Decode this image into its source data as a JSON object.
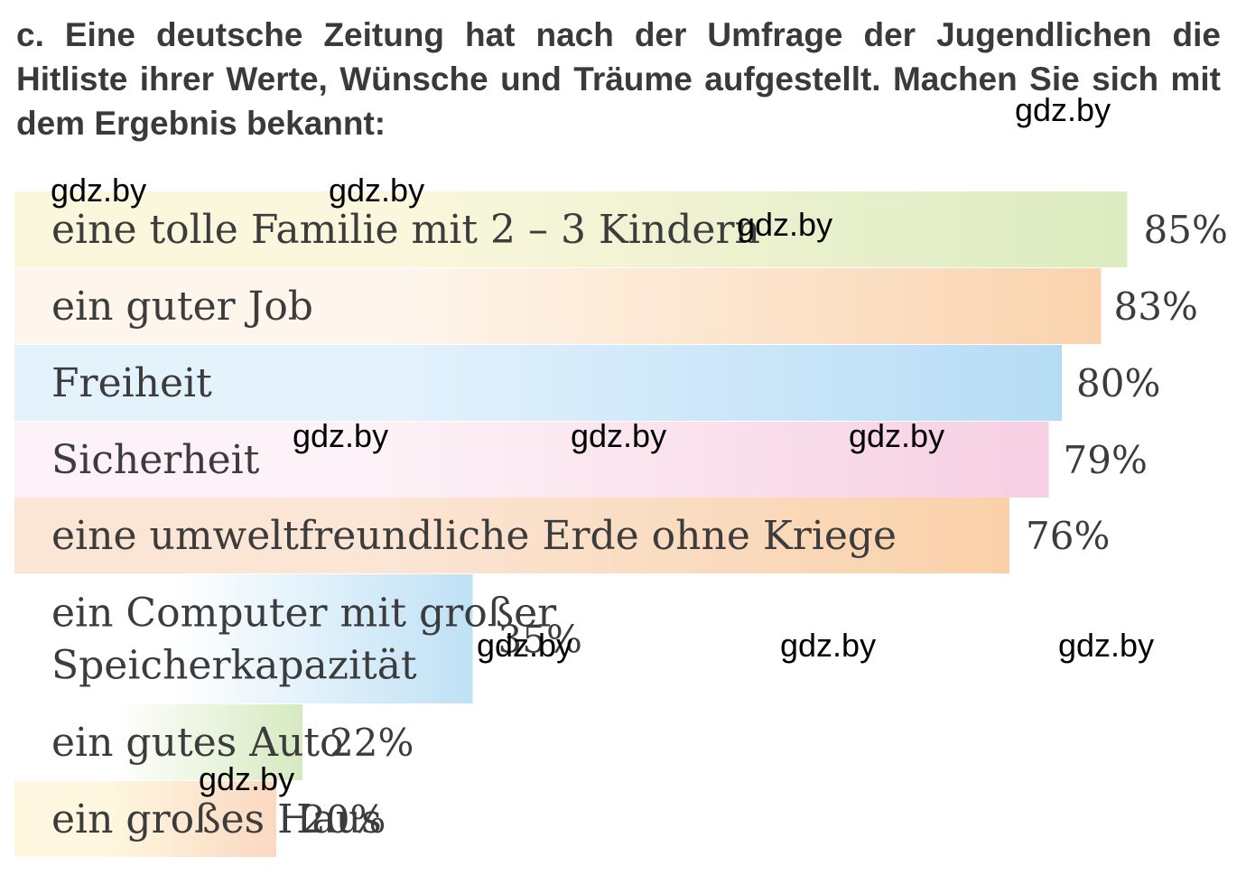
{
  "task": {
    "text": "c. Eine deutsche Zeitung hat nach der Umfrage der Jugendlichen die Hitliste ihrer Werte, Wünsche und Träume aufgestellt. Machen Sie sich mit dem Ergebnis bekannt:"
  },
  "watermark": "gdz.by",
  "chart_data": {
    "type": "bar",
    "orientation": "horizontal",
    "categories": [
      [
        "eine tolle Familie mit 2 – 3 Kindern"
      ],
      [
        "ein guter Job"
      ],
      [
        "Freiheit"
      ],
      [
        "Sicherheit"
      ],
      [
        "eine umweltfreundliche Erde ohne Kriege"
      ],
      [
        "ein Computer mit großer",
        "Speicherkapazität"
      ],
      [
        "ein gutes Auto"
      ],
      [
        "ein großes Haus"
      ]
    ],
    "values": [
      85,
      83,
      80,
      79,
      76,
      35,
      22,
      20
    ],
    "value_labels": [
      "85%",
      "83%",
      "80%",
      "79%",
      "76%",
      "35%",
      "22%",
      "20%"
    ],
    "colors": [
      [
        "#fbf7dc",
        "#dcebc0"
      ],
      [
        "#fef6ec",
        "#fad3ad"
      ],
      [
        "#e4f2fc",
        "#b6dcf5"
      ],
      [
        "#fdf2f7",
        "#f6cfe2"
      ],
      [
        "#fbe6d6",
        "#fad1a9"
      ],
      [
        "#ffffff",
        "#bfe1f5"
      ],
      [
        "#ffffff",
        "#d6eac0"
      ],
      [
        "#fff7df",
        "#fbd8c1"
      ]
    ],
    "unit": "%"
  }
}
